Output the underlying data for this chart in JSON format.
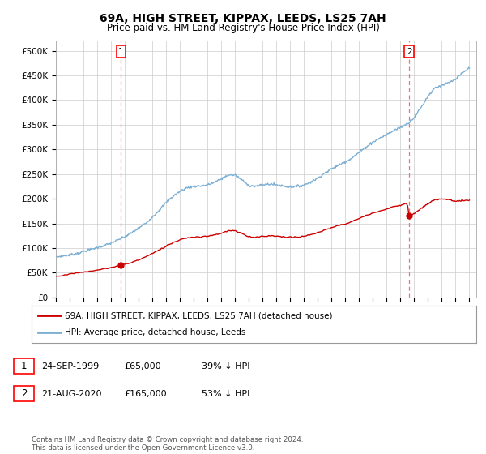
{
  "title": "69A, HIGH STREET, KIPPAX, LEEDS, LS25 7AH",
  "subtitle": "Price paid vs. HM Land Registry's House Price Index (HPI)",
  "legend_line1": "69A, HIGH STREET, KIPPAX, LEEDS, LS25 7AH (detached house)",
  "legend_line2": "HPI: Average price, detached house, Leeds",
  "annotation1_date": "24-SEP-1999",
  "annotation1_price": "£65,000",
  "annotation1_hpi": "39% ↓ HPI",
  "annotation2_date": "21-AUG-2020",
  "annotation2_price": "£165,000",
  "annotation2_hpi": "53% ↓ HPI",
  "footer": "Contains HM Land Registry data © Crown copyright and database right 2024.\nThis data is licensed under the Open Government Licence v3.0.",
  "sale1_x": 1999.73,
  "sale1_y": 65000,
  "sale2_x": 2020.63,
  "sale2_y": 165000,
  "hpi_color": "#7bafd4",
  "price_color": "#cc0000",
  "vline_color": "#e87878",
  "ylim_min": 0,
  "ylim_max": 520000,
  "xlim_min": 1995.0,
  "xlim_max": 2025.5,
  "background_color": "#ffffff",
  "grid_color": "#cccccc",
  "yticks": [
    0,
    50000,
    100000,
    150000,
    200000,
    250000,
    300000,
    350000,
    400000,
    450000,
    500000
  ],
  "yticklabels": [
    "£0",
    "£50K",
    "£100K",
    "£150K",
    "£200K",
    "£250K",
    "£300K",
    "£350K",
    "£400K",
    "£450K",
    "£500K"
  ],
  "hpi_points": [
    [
      1995.0,
      82000
    ],
    [
      1995.5,
      84000
    ],
    [
      1996.0,
      86000
    ],
    [
      1996.5,
      89000
    ],
    [
      1997.0,
      93000
    ],
    [
      1997.5,
      97000
    ],
    [
      1998.0,
      101000
    ],
    [
      1998.5,
      105000
    ],
    [
      1999.0,
      110000
    ],
    [
      1999.5,
      116000
    ],
    [
      2000.0,
      123000
    ],
    [
      2000.5,
      131000
    ],
    [
      2001.0,
      140000
    ],
    [
      2001.5,
      150000
    ],
    [
      2002.0,
      163000
    ],
    [
      2002.5,
      177000
    ],
    [
      2003.0,
      192000
    ],
    [
      2003.5,
      205000
    ],
    [
      2004.0,
      215000
    ],
    [
      2004.5,
      222000
    ],
    [
      2005.0,
      225000
    ],
    [
      2005.5,
      226000
    ],
    [
      2006.0,
      228000
    ],
    [
      2006.5,
      233000
    ],
    [
      2007.0,
      240000
    ],
    [
      2007.5,
      248000
    ],
    [
      2008.0,
      248000
    ],
    [
      2008.5,
      238000
    ],
    [
      2009.0,
      227000
    ],
    [
      2009.5,
      225000
    ],
    [
      2010.0,
      228000
    ],
    [
      2010.5,
      230000
    ],
    [
      2011.0,
      228000
    ],
    [
      2011.5,
      226000
    ],
    [
      2012.0,
      224000
    ],
    [
      2012.5,
      225000
    ],
    [
      2013.0,
      228000
    ],
    [
      2013.5,
      234000
    ],
    [
      2014.0,
      242000
    ],
    [
      2014.5,
      252000
    ],
    [
      2015.0,
      260000
    ],
    [
      2015.5,
      268000
    ],
    [
      2016.0,
      275000
    ],
    [
      2016.5,
      283000
    ],
    [
      2017.0,
      294000
    ],
    [
      2017.5,
      305000
    ],
    [
      2018.0,
      315000
    ],
    [
      2018.5,
      323000
    ],
    [
      2019.0,
      330000
    ],
    [
      2019.5,
      338000
    ],
    [
      2020.0,
      345000
    ],
    [
      2020.5,
      352000
    ],
    [
      2021.0,
      365000
    ],
    [
      2021.5,
      385000
    ],
    [
      2022.0,
      408000
    ],
    [
      2022.5,
      425000
    ],
    [
      2023.0,
      430000
    ],
    [
      2023.5,
      435000
    ],
    [
      2024.0,
      442000
    ],
    [
      2024.5,
      455000
    ],
    [
      2025.0,
      465000
    ]
  ],
  "prop_points_seg1": [
    [
      1995.0,
      43000
    ],
    [
      1995.5,
      45000
    ],
    [
      1996.0,
      47000
    ],
    [
      1996.5,
      49000
    ],
    [
      1997.0,
      51000
    ],
    [
      1997.5,
      53000
    ],
    [
      1998.0,
      55000
    ],
    [
      1998.5,
      58000
    ],
    [
      1999.0,
      60000
    ],
    [
      1999.5,
      64000
    ],
    [
      1999.73,
      65000
    ]
  ],
  "prop_points_seg2": [
    [
      1999.73,
      65000
    ],
    [
      2000.0,
      67000
    ],
    [
      2000.5,
      71000
    ],
    [
      2001.0,
      76000
    ],
    [
      2001.5,
      82000
    ],
    [
      2002.0,
      89000
    ],
    [
      2002.5,
      96000
    ],
    [
      2003.0,
      104000
    ],
    [
      2003.5,
      111000
    ],
    [
      2004.0,
      117000
    ],
    [
      2004.5,
      121000
    ],
    [
      2005.0,
      122000
    ],
    [
      2005.5,
      123000
    ],
    [
      2006.0,
      124000
    ],
    [
      2006.5,
      127000
    ],
    [
      2007.0,
      130000
    ],
    [
      2007.5,
      135000
    ],
    [
      2008.0,
      135000
    ],
    [
      2008.5,
      129000
    ],
    [
      2009.0,
      123000
    ],
    [
      2009.5,
      122000
    ],
    [
      2010.0,
      124000
    ],
    [
      2010.5,
      125000
    ],
    [
      2011.0,
      124000
    ],
    [
      2011.5,
      123000
    ],
    [
      2012.0,
      122000
    ],
    [
      2012.5,
      122000
    ],
    [
      2013.0,
      124000
    ],
    [
      2013.5,
      127000
    ],
    [
      2014.0,
      131000
    ],
    [
      2014.5,
      137000
    ],
    [
      2015.0,
      141000
    ],
    [
      2015.5,
      146000
    ],
    [
      2016.0,
      149000
    ],
    [
      2016.5,
      154000
    ],
    [
      2017.0,
      160000
    ],
    [
      2017.5,
      166000
    ],
    [
      2018.0,
      171000
    ],
    [
      2018.5,
      175000
    ],
    [
      2019.0,
      179000
    ],
    [
      2019.5,
      184000
    ],
    [
      2020.0,
      187000
    ],
    [
      2020.5,
      191000
    ],
    [
      2020.63,
      165000
    ]
  ],
  "prop_points_seg3": [
    [
      2020.63,
      165000
    ],
    [
      2021.0,
      170000
    ],
    [
      2021.5,
      180000
    ],
    [
      2022.0,
      190000
    ],
    [
      2022.5,
      198000
    ],
    [
      2023.0,
      200000
    ],
    [
      2023.5,
      198000
    ],
    [
      2024.0,
      195000
    ],
    [
      2024.5,
      196000
    ],
    [
      2025.0,
      197000
    ]
  ]
}
